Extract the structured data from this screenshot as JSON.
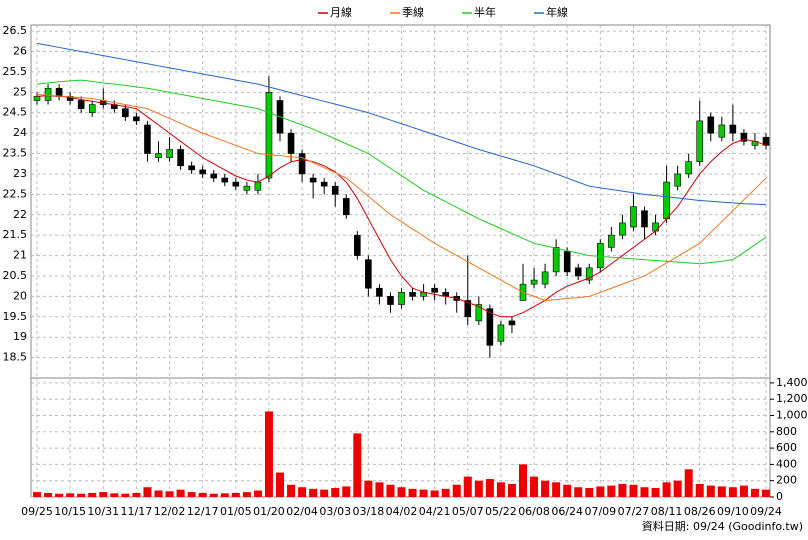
{
  "chart_data": [
    {
      "type": "candlestick",
      "categories": [
        "09/25",
        null,
        null,
        "10/15",
        null,
        null,
        "10/31",
        null,
        null,
        "11/17",
        null,
        null,
        "12/02",
        null,
        null,
        "12/17",
        null,
        null,
        "01/05",
        null,
        null,
        "01/20",
        null,
        null,
        "02/04",
        null,
        null,
        "03/03",
        null,
        null,
        "03/18",
        null,
        null,
        "04/02",
        null,
        null,
        "04/21",
        null,
        null,
        "05/07",
        null,
        null,
        "05/22",
        null,
        null,
        "06/08",
        null,
        null,
        "06/24",
        null,
        null,
        "07/09",
        null,
        null,
        "07/27",
        null,
        null,
        "08/11",
        null,
        null,
        "08/26",
        null,
        null,
        "09/10",
        null,
        null,
        "09/24"
      ],
      "open": [
        24.8,
        24.8,
        25.1,
        24.9,
        24.8,
        24.5,
        24.8,
        24.7,
        24.6,
        24.4,
        24.2,
        23.4,
        23.4,
        23.6,
        23.2,
        23.1,
        23.0,
        22.9,
        22.8,
        22.6,
        22.6,
        22.9,
        24.8,
        24.0,
        23.5,
        22.9,
        22.8,
        22.7,
        22.4,
        21.5,
        20.9,
        20.2,
        20.0,
        19.8,
        20.1,
        20.0,
        20.2,
        20.1,
        20.0,
        19.9,
        19.4,
        19.7,
        18.9,
        19.4,
        19.9,
        20.3,
        20.3,
        20.6,
        21.1,
        20.7,
        20.4,
        20.7,
        21.2,
        21.5,
        21.7,
        22.1,
        21.6,
        21.9,
        22.7,
        23.0,
        23.3,
        24.4,
        23.9,
        24.2,
        24.0,
        23.7,
        23.9
      ],
      "high": [
        25.0,
        25.2,
        25.2,
        25.0,
        24.9,
        24.8,
        25.1,
        24.8,
        24.7,
        24.5,
        24.3,
        23.8,
        23.9,
        23.7,
        23.3,
        23.2,
        23.1,
        23.0,
        22.9,
        22.8,
        23.0,
        25.4,
        24.9,
        24.1,
        23.6,
        23.0,
        22.9,
        22.8,
        22.5,
        21.6,
        21.0,
        20.3,
        20.1,
        20.2,
        20.2,
        20.3,
        20.3,
        20.2,
        20.1,
        21.0,
        20.0,
        19.8,
        19.4,
        19.5,
        20.8,
        20.7,
        20.8,
        21.4,
        21.2,
        20.8,
        20.8,
        21.4,
        21.7,
        22.0,
        22.5,
        22.2,
        22.0,
        23.2,
        23.2,
        23.5,
        24.8,
        24.5,
        24.4,
        24.7,
        24.1,
        24.0,
        24.0
      ],
      "low": [
        24.7,
        24.7,
        24.8,
        24.7,
        24.5,
        24.4,
        24.6,
        24.5,
        24.3,
        24.2,
        23.3,
        23.3,
        23.3,
        23.1,
        23.0,
        22.9,
        22.8,
        22.7,
        22.6,
        22.5,
        22.5,
        22.8,
        23.8,
        23.3,
        22.8,
        22.4,
        22.5,
        22.2,
        21.9,
        20.9,
        20.0,
        19.8,
        19.6,
        19.7,
        19.9,
        19.9,
        19.9,
        19.8,
        19.6,
        19.3,
        19.3,
        18.5,
        18.8,
        19.1,
        19.9,
        20.2,
        20.2,
        20.5,
        20.5,
        20.4,
        20.3,
        20.6,
        21.1,
        21.4,
        21.6,
        21.4,
        21.5,
        21.8,
        22.6,
        22.9,
        23.2,
        23.8,
        23.8,
        23.8,
        23.7,
        23.6,
        23.6
      ],
      "close": [
        24.9,
        25.1,
        24.9,
        24.8,
        24.6,
        24.7,
        24.7,
        24.6,
        24.4,
        24.3,
        23.5,
        23.5,
        23.6,
        23.2,
        23.1,
        23.0,
        22.9,
        22.8,
        22.7,
        22.7,
        22.8,
        25.0,
        24.0,
        23.5,
        23.0,
        22.8,
        22.7,
        22.5,
        22.0,
        21.0,
        20.2,
        20.0,
        19.8,
        20.1,
        20.0,
        20.1,
        20.1,
        20.0,
        19.9,
        19.5,
        19.8,
        18.8,
        19.3,
        19.3,
        20.3,
        20.4,
        20.6,
        21.2,
        20.6,
        20.5,
        20.7,
        21.3,
        21.5,
        21.8,
        22.2,
        21.7,
        21.8,
        22.8,
        23.0,
        23.3,
        24.3,
        24.0,
        24.2,
        24.0,
        23.8,
        23.8,
        23.7
      ],
      "up_color": "#00cc00",
      "down_color": "#000000",
      "series": [
        {
          "name": "月線",
          "color": "#cc0000",
          "values": [
            24.9,
            24.92,
            24.9,
            24.88,
            24.82,
            24.78,
            24.74,
            24.7,
            24.65,
            24.6,
            24.4,
            24.2,
            24.0,
            23.8,
            23.6,
            23.4,
            23.25,
            23.1,
            22.95,
            22.85,
            22.8,
            22.95,
            23.15,
            23.3,
            23.35,
            23.3,
            23.2,
            23.05,
            22.8,
            22.4,
            21.9,
            21.4,
            20.9,
            20.5,
            20.2,
            20.1,
            20.05,
            20.0,
            19.95,
            19.85,
            19.75,
            19.6,
            19.5,
            19.5,
            19.6,
            19.75,
            19.9,
            20.1,
            20.25,
            20.35,
            20.45,
            20.6,
            20.8,
            21.0,
            21.2,
            21.4,
            21.6,
            21.9,
            22.2,
            22.6,
            23.0,
            23.3,
            23.55,
            23.75,
            23.85,
            23.8,
            23.7
          ]
        },
        {
          "name": "季線",
          "color": "#ee7722",
          "values": [
            24.95,
            24.93,
            24.91,
            24.89,
            24.87,
            24.85,
            24.8,
            24.75,
            24.7,
            24.65,
            24.6,
            24.48,
            24.36,
            24.24,
            24.12,
            24.0,
            23.9,
            23.8,
            23.7,
            23.6,
            23.5,
            23.47,
            23.45,
            23.42,
            23.4,
            23.28,
            23.15,
            23.03,
            22.9,
            22.68,
            22.45,
            22.23,
            22.0,
            21.83,
            21.65,
            21.48,
            21.3,
            21.15,
            21.0,
            20.85,
            20.7,
            20.55,
            20.4,
            20.25,
            20.1,
            20.0,
            19.9,
            19.92,
            19.95,
            19.97,
            20.0,
            20.1,
            20.2,
            20.3,
            20.4,
            20.5,
            20.66,
            20.82,
            20.98,
            21.14,
            21.3,
            21.57,
            21.83,
            22.1,
            22.37,
            22.63,
            22.9
          ]
        },
        {
          "name": "半年",
          "color": "#22cc22",
          "values": [
            25.2,
            25.23,
            25.26,
            25.28,
            25.3,
            25.27,
            25.23,
            25.2,
            25.17,
            25.13,
            25.1,
            25.05,
            25.0,
            24.95,
            24.9,
            24.85,
            24.8,
            24.75,
            24.7,
            24.65,
            24.6,
            24.5,
            24.4,
            24.3,
            24.2,
            24.1,
            23.98,
            23.86,
            23.74,
            23.62,
            23.5,
            23.32,
            23.14,
            22.96,
            22.78,
            22.6,
            22.46,
            22.32,
            22.18,
            22.04,
            21.9,
            21.78,
            21.66,
            21.54,
            21.42,
            21.3,
            21.24,
            21.18,
            21.12,
            21.06,
            21.0,
            20.98,
            20.96,
            20.94,
            20.92,
            20.9,
            20.88,
            20.86,
            20.84,
            20.82,
            20.8,
            20.83,
            20.86,
            20.9,
            21.08,
            21.26,
            21.45
          ]
        },
        {
          "name": "年線",
          "color": "#2266cc",
          "values": [
            26.2,
            26.15,
            26.1,
            26.05,
            26.0,
            25.95,
            25.9,
            25.85,
            25.8,
            25.75,
            25.7,
            25.65,
            25.6,
            25.55,
            25.5,
            25.45,
            25.4,
            25.35,
            25.3,
            25.25,
            25.2,
            25.13,
            25.06,
            24.99,
            24.92,
            24.85,
            24.78,
            24.71,
            24.64,
            24.57,
            24.5,
            24.41,
            24.32,
            24.23,
            24.14,
            24.05,
            23.96,
            23.87,
            23.78,
            23.69,
            23.6,
            23.52,
            23.44,
            23.36,
            23.28,
            23.2,
            23.1,
            23.0,
            22.9,
            22.8,
            22.7,
            22.66,
            22.62,
            22.58,
            22.54,
            22.5,
            22.47,
            22.44,
            22.41,
            22.38,
            22.35,
            22.33,
            22.31,
            22.29,
            22.27,
            22.26,
            22.25
          ]
        }
      ],
      "ylim": [
        18,
        26.65
      ],
      "yticks": [
        18.5,
        19,
        19.5,
        20,
        20.5,
        21,
        21.5,
        22,
        22.5,
        23,
        23.5,
        24,
        24.5,
        25,
        25.5,
        26,
        26.5
      ],
      "grid": true
    },
    {
      "type": "bar",
      "values": [
        60,
        50,
        40,
        45,
        40,
        50,
        60,
        45,
        40,
        50,
        120,
        80,
        70,
        90,
        60,
        50,
        40,
        45,
        50,
        60,
        80,
        1050,
        300,
        150,
        120,
        100,
        90,
        110,
        130,
        780,
        200,
        180,
        150,
        120,
        100,
        90,
        80,
        100,
        150,
        250,
        200,
        220,
        180,
        160,
        400,
        250,
        200,
        180,
        150,
        120,
        110,
        130,
        140,
        160,
        150,
        120,
        110,
        180,
        200,
        340,
        160,
        140,
        130,
        120,
        140,
        100,
        90
      ],
      "color": "#ee0000",
      "ylim": [
        0,
        1460
      ],
      "yticks": [
        0,
        200,
        400,
        600,
        800,
        {
          "value": 1000,
          "label": "1,000"
        },
        {
          "value": 1200,
          "label": "1,200"
        },
        {
          "value": 1400,
          "label": "1,400"
        }
      ],
      "grid": true
    }
  ],
  "footer": "資料日期: 09/24 (Goodinfo.tw)"
}
